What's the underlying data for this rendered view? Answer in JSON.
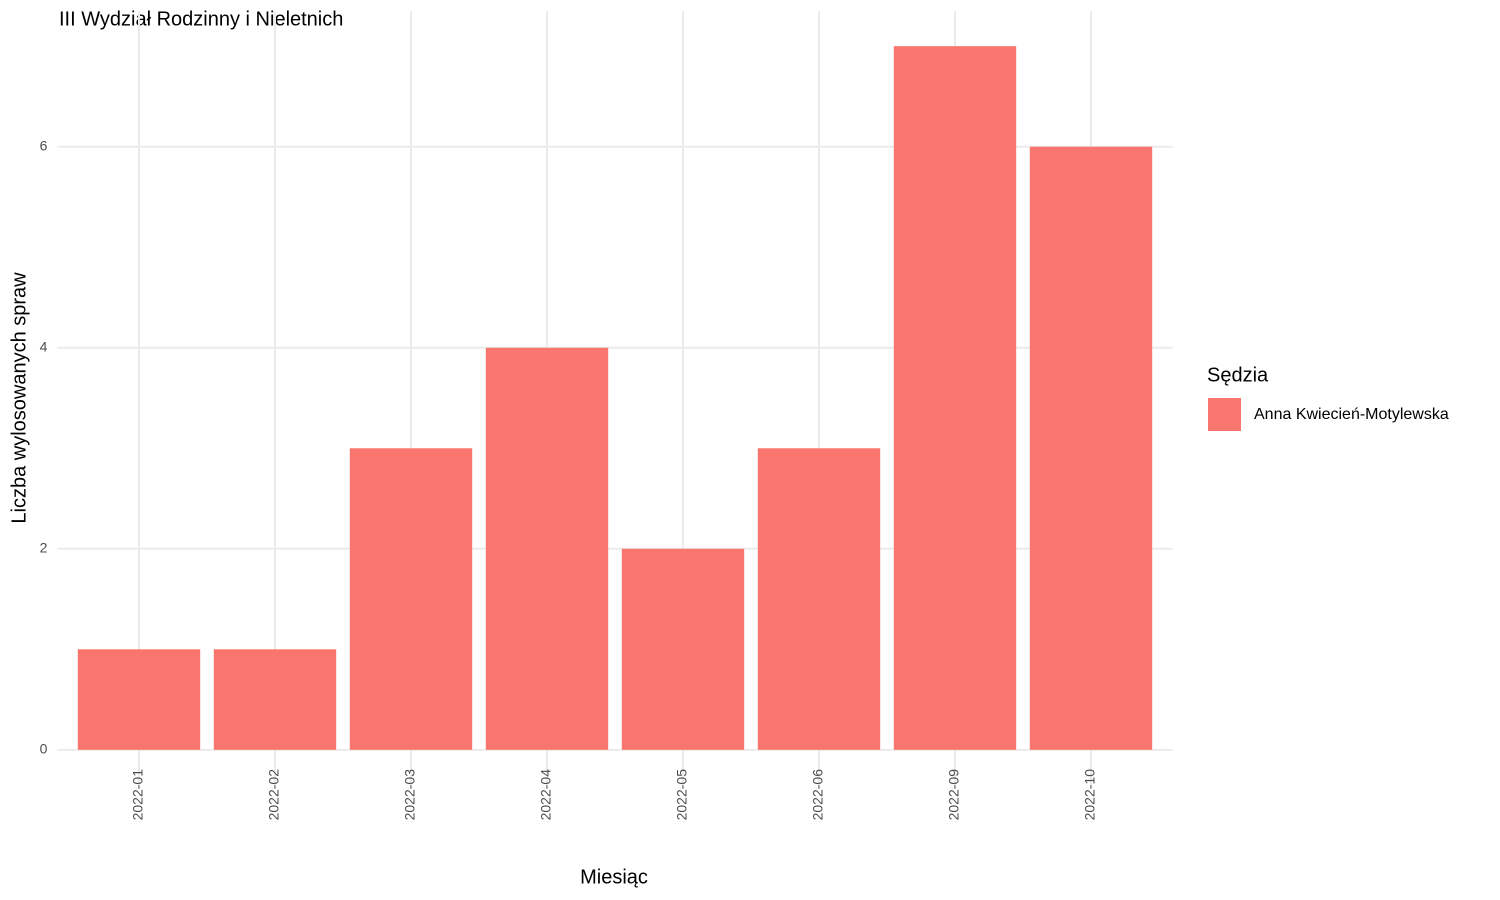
{
  "chart_data": {
    "type": "bar",
    "title": "III Wydział Rodzinny i Nieletnich",
    "x_label": "Miesiąc",
    "y_label": "Liczba wylosowanych spraw",
    "categories": [
      "2022-01",
      "2022-02",
      "2022-03",
      "2022-04",
      "2022-05",
      "2022-06",
      "2022-09",
      "2022-10"
    ],
    "series": [
      {
        "name": "Anna Kwiecień-Motylewska",
        "color": "#f8766d",
        "values": [
          1,
          1,
          3,
          4,
          2,
          3,
          7,
          6
        ]
      }
    ],
    "legend_title": "Sędzia",
    "ylim": [
      -0.35,
      7.35
    ],
    "yticks": [
      0,
      2,
      4,
      6
    ],
    "grid": true
  }
}
